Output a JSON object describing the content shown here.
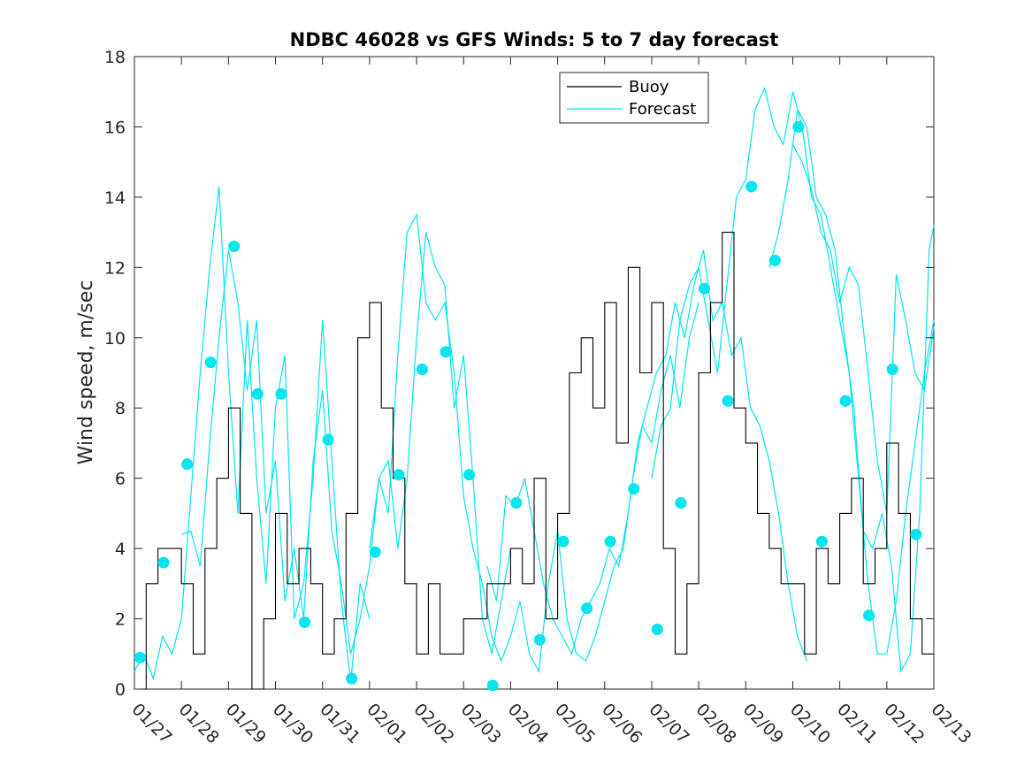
{
  "chart_data": {
    "type": "line",
    "title": "NDBC 46028 vs GFS Winds: 5 to 7 day forecast",
    "xlabel": "",
    "ylabel": "Wind speed, m/sec",
    "xlim": [
      0,
      17
    ],
    "ylim": [
      0,
      18
    ],
    "yticks": [
      0,
      2,
      4,
      6,
      8,
      10,
      12,
      14,
      16,
      18
    ],
    "x_tick_labels": [
      "01/27",
      "01/28",
      "01/29",
      "01/30",
      "01/31",
      "02/01",
      "02/02",
      "02/03",
      "02/04",
      "02/05",
      "02/06",
      "02/07",
      "02/08",
      "02/09",
      "02/10",
      "02/11",
      "02/12",
      "02/13"
    ],
    "legend": {
      "position": "top-center",
      "entries": [
        {
          "name": "Buoy",
          "color": "#000000"
        },
        {
          "name": "Forecast",
          "color": "#00e5ee"
        }
      ]
    },
    "buoy": {
      "name": "Buoy",
      "color": "#000000",
      "x": [
        0.0,
        0.25,
        0.5,
        0.75,
        1.0,
        1.25,
        1.5,
        1.75,
        2.0,
        2.25,
        2.5,
        2.75,
        3.0,
        3.25,
        3.5,
        3.75,
        4.0,
        4.25,
        4.5,
        4.75,
        5.0,
        5.25,
        5.5,
        5.75,
        6.0,
        6.25,
        6.5,
        6.75,
        7.0,
        7.25,
        7.5,
        7.75,
        8.0,
        8.25,
        8.5,
        8.75,
        9.0,
        9.25,
        9.5,
        9.75,
        10.0,
        10.25,
        10.5,
        10.75,
        11.0,
        11.25,
        11.5,
        11.75,
        12.0,
        12.25,
        12.5,
        12.75,
        13.0,
        13.25,
        13.5,
        13.75,
        14.0,
        14.25,
        14.5,
        14.75,
        15.0,
        15.25,
        15.5,
        15.75,
        16.0,
        16.25,
        16.5,
        16.75
      ],
      "values": [
        0,
        3,
        4,
        4,
        3,
        1,
        4,
        6,
        8,
        5,
        0,
        2,
        5,
        3,
        4,
        3,
        1,
        2,
        5,
        10,
        11,
        8,
        6,
        3,
        1,
        3,
        1,
        1,
        2,
        2,
        3,
        3,
        4,
        3,
        6,
        2,
        5,
        9,
        10,
        8,
        11,
        7,
        12,
        9,
        11,
        4,
        1,
        3,
        9,
        11,
        13,
        8,
        7,
        5,
        4,
        3,
        3,
        1,
        4,
        3,
        5,
        6,
        3,
        4,
        7,
        5,
        2,
        1
      ]
    },
    "forecast": {
      "name": "Forecast",
      "color": "#00e5ee",
      "markers": {
        "x": [
          0.12,
          0.62,
          1.12,
          1.62,
          2.12,
          2.62,
          3.12,
          3.62,
          4.12,
          4.62,
          5.12,
          5.62,
          6.12,
          6.62,
          7.12,
          7.62,
          8.12,
          8.62,
          9.12,
          9.62,
          10.12,
          10.62,
          11.12,
          11.62,
          12.12,
          12.62,
          13.12,
          13.62,
          14.12,
          14.62,
          15.12,
          15.62,
          16.12,
          16.62
        ],
        "values": [
          0.9,
          3.6,
          6.4,
          9.3,
          12.6,
          8.4,
          8.4,
          1.9,
          7.1,
          0.3,
          3.9,
          6.1,
          9.1,
          9.6,
          6.1,
          0.1,
          5.3,
          1.4,
          4.2,
          2.3,
          4.2,
          5.7,
          1.7,
          5.3,
          11.4,
          8.2,
          14.3,
          12.2,
          16.0,
          4.2,
          8.2,
          2.1,
          9.1,
          4.4
        ]
      },
      "series": [
        {
          "x": [
            0.0,
            0.2,
            0.4,
            0.6,
            0.8,
            1.0,
            1.2,
            1.4,
            1.6,
            1.8,
            2.0,
            2.2,
            2.4,
            2.6,
            2.8,
            3.0,
            3.2,
            3.4,
            3.6,
            3.8,
            4.0,
            4.2,
            4.4,
            4.6,
            4.8,
            5.0
          ],
          "values": [
            0.5,
            1.0,
            0.3,
            1.5,
            1.0,
            2.0,
            5.5,
            9.0,
            12.0,
            14.3,
            9.0,
            5.0,
            10.5,
            6.0,
            3.0,
            8.0,
            9.5,
            2.0,
            3.0,
            6.0,
            10.5,
            6.5,
            2.5,
            0.2,
            3.0,
            2.0
          ]
        },
        {
          "x": [
            1.0,
            1.2,
            1.4,
            1.6,
            1.8,
            2.0,
            2.2,
            2.4,
            2.6,
            2.8,
            3.0,
            3.2,
            3.4,
            3.6,
            3.8,
            4.0,
            4.2,
            4.4,
            4.6,
            4.8,
            5.0,
            5.2,
            5.4,
            5.6,
            5.8,
            6.0,
            6.2,
            6.4,
            6.6,
            6.8,
            7.0,
            7.2,
            7.4,
            7.6,
            7.8,
            8.0
          ],
          "values": [
            4.4,
            4.5,
            3.5,
            7.0,
            10.0,
            12.5,
            11.0,
            8.5,
            10.5,
            5.0,
            6.5,
            2.5,
            4.0,
            2.0,
            6.5,
            8.5,
            4.5,
            3.0,
            1.0,
            2.0,
            3.5,
            6.0,
            6.5,
            4.0,
            6.0,
            10.0,
            13.0,
            12.0,
            11.5,
            8.0,
            9.5,
            6.0,
            2.0,
            1.0,
            2.5,
            4.0
          ]
        },
        {
          "x": [
            5.0,
            5.2,
            5.4,
            5.6,
            5.8,
            6.0,
            6.2,
            6.4,
            6.6,
            6.8,
            7.0,
            7.2,
            7.4,
            7.6,
            7.8,
            8.0,
            8.2,
            8.4,
            8.6,
            8.8,
            9.0,
            9.2,
            9.4,
            9.6,
            9.8,
            10.0,
            10.2,
            10.4,
            10.6,
            10.8,
            11.0,
            11.2,
            11.4,
            11.6,
            11.8,
            12.0
          ],
          "values": [
            4.0,
            6.0,
            5.0,
            9.5,
            13.0,
            13.5,
            11.0,
            10.5,
            11.0,
            9.0,
            5.5,
            4.0,
            3.0,
            1.5,
            0.8,
            1.5,
            2.5,
            1.0,
            0.5,
            3.0,
            4.5,
            2.0,
            1.0,
            0.8,
            1.5,
            2.5,
            3.5,
            4.0,
            6.0,
            7.5,
            7.0,
            8.5,
            9.5,
            8.0,
            10.0,
            11.0
          ]
        },
        {
          "x": [
            11.0,
            11.2,
            11.4,
            11.6,
            11.8,
            12.0,
            12.2,
            12.4,
            12.6,
            12.8,
            13.0,
            13.2,
            13.4,
            13.6,
            13.8,
            14.0,
            14.2,
            14.4,
            14.6,
            14.8,
            15.0,
            15.2,
            15.4,
            15.6,
            15.8,
            16.0,
            16.2,
            16.4,
            16.6,
            16.8,
            17.0
          ],
          "values": [
            6.0,
            7.5,
            8.0,
            10.5,
            11.5,
            12.0,
            10.5,
            9.0,
            11.5,
            14.0,
            14.5,
            16.5,
            17.1,
            16.0,
            15.5,
            17.0,
            16.0,
            14.0,
            13.5,
            12.0,
            10.5,
            9.0,
            6.0,
            3.0,
            1.0,
            1.0,
            2.5,
            5.0,
            7.0,
            9.0,
            10.5
          ]
        },
        {
          "x": [
            13.5,
            13.7,
            13.9,
            14.1,
            14.3,
            14.5,
            14.7,
            14.9,
            15.1,
            15.3,
            15.5,
            15.7,
            15.9,
            16.1,
            16.3,
            16.5,
            16.7,
            16.9,
            17.0
          ],
          "values": [
            12.0,
            13.0,
            14.5,
            16.5,
            16.0,
            14.0,
            13.5,
            12.5,
            10.0,
            8.0,
            4.5,
            4.0,
            5.0,
            3.5,
            0.5,
            1.0,
            5.0,
            12.5,
            13.2
          ]
        },
        {
          "x": [
            7.5,
            7.7,
            7.9,
            8.1,
            8.3,
            8.5,
            8.7,
            8.9,
            9.1,
            9.3,
            9.5,
            9.7,
            9.9,
            10.1,
            10.3,
            10.5,
            10.7,
            10.9,
            11.1,
            11.3,
            11.5,
            11.7,
            11.9,
            12.1,
            12.3,
            12.5,
            12.7,
            12.9,
            13.1,
            13.3,
            13.5,
            13.7,
            13.9,
            14.1,
            14.3
          ],
          "values": [
            3.5,
            2.5,
            5.5,
            5.2,
            6.0,
            4.5,
            3.0,
            2.0,
            1.5,
            1.0,
            2.0,
            2.5,
            3.0,
            4.0,
            3.5,
            5.0,
            7.0,
            8.0,
            9.0,
            9.5,
            11.0,
            10.0,
            11.5,
            12.5,
            10.5,
            11.0,
            9.5,
            10.0,
            8.0,
            7.5,
            6.5,
            5.0,
            3.0,
            1.5,
            0.8
          ]
        },
        {
          "x": [
            14.0,
            14.2,
            14.4,
            14.6,
            14.8,
            15.0,
            15.2,
            15.4,
            15.6,
            15.8,
            16.0,
            16.2,
            16.4,
            16.6,
            16.8,
            17.0
          ],
          "values": [
            15.5,
            15.0,
            14.2,
            13.0,
            12.5,
            11.0,
            12.0,
            11.5,
            9.0,
            6.5,
            5.0,
            11.8,
            10.5,
            9.0,
            8.5,
            10.3
          ]
        }
      ]
    }
  }
}
